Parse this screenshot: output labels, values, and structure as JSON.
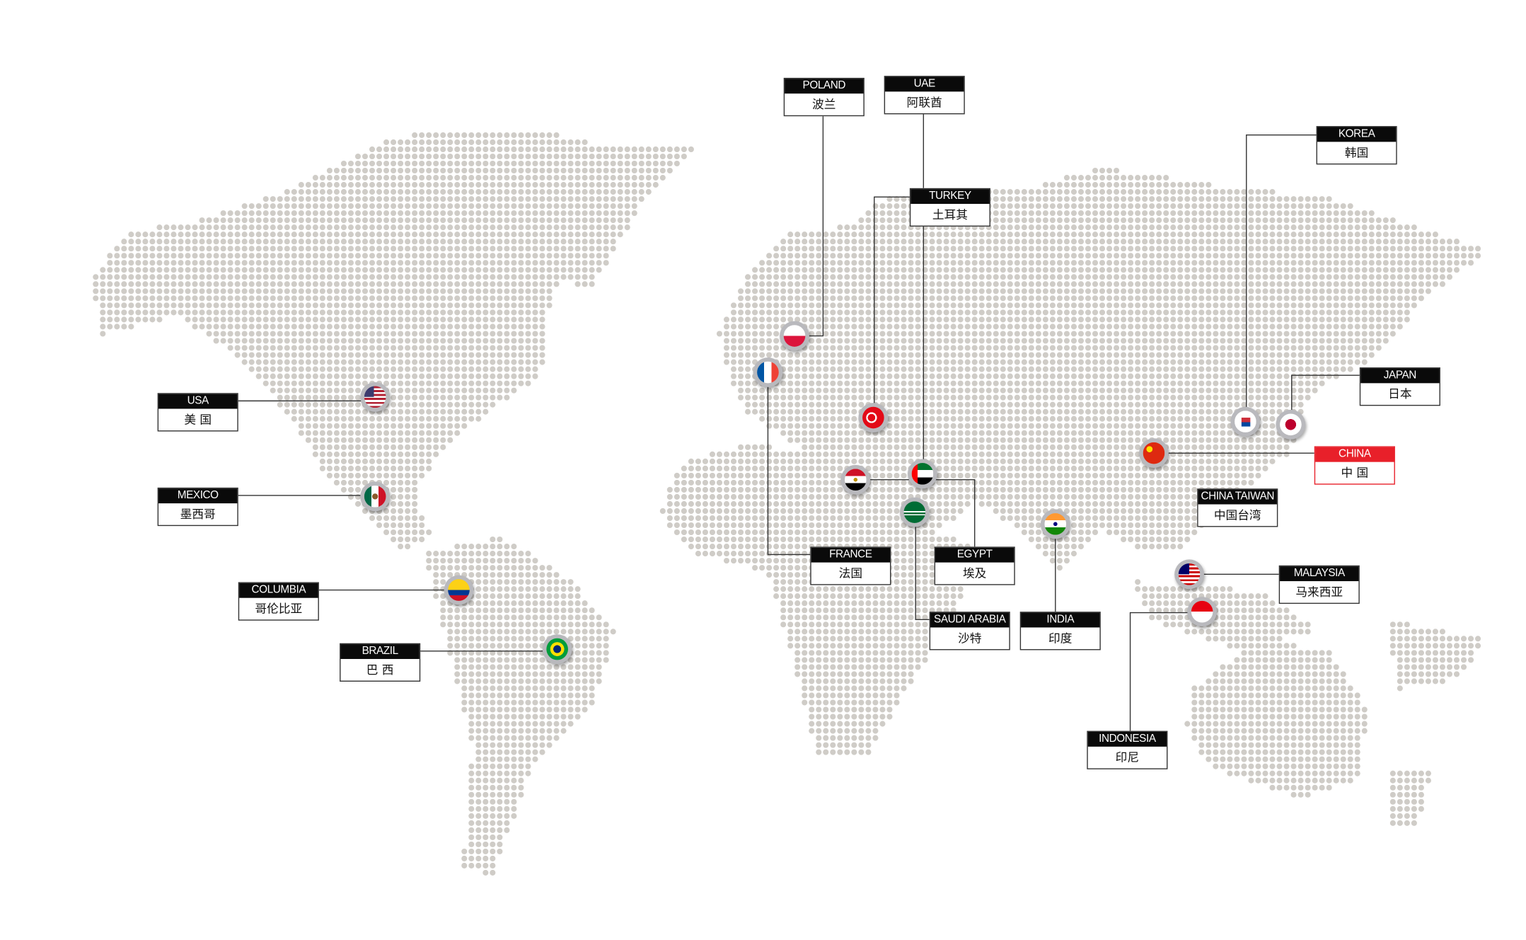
{
  "map": {
    "dot_color": "#cfccc7",
    "line_color": "#333333",
    "highlight_color": "#e8202a"
  },
  "locations": [
    {
      "id": "poland",
      "en": "POLAND",
      "cn": "波兰",
      "flag": "poland-flag-icon"
    },
    {
      "id": "uae",
      "en": "UAE",
      "cn": "阿联酋",
      "flag": "uae-flag-icon"
    },
    {
      "id": "turkey",
      "en": "TURKEY",
      "cn": "土耳其",
      "flag": "turkey-flag-icon"
    },
    {
      "id": "korea",
      "en": "KOREA",
      "cn": "韩国",
      "flag": "korea-flag-icon"
    },
    {
      "id": "japan",
      "en": "JAPAN",
      "cn": "日本",
      "flag": "japan-flag-icon"
    },
    {
      "id": "china",
      "en": "CHINA",
      "cn": "中 国",
      "flag": "china-flag-icon",
      "highlight": true
    },
    {
      "id": "china-taiwan",
      "en": "CHINA TAIWAN",
      "cn": "中国台湾"
    },
    {
      "id": "malaysia",
      "en": "MALAYSIA",
      "cn": "马来西亚",
      "flag": "malaysia-flag-icon"
    },
    {
      "id": "indonesia",
      "en": "INDONESIA",
      "cn": "印尼",
      "flag": "indonesia-flag-icon"
    },
    {
      "id": "india",
      "en": "INDIA",
      "cn": "印度",
      "flag": "india-flag-icon"
    },
    {
      "id": "saudi-arabia",
      "en": "SAUDI ARABIA",
      "cn": "沙特",
      "flag": "saudi-flag-icon"
    },
    {
      "id": "egypt",
      "en": "EGYPT",
      "cn": "埃及",
      "flag": "egypt-flag-icon"
    },
    {
      "id": "france",
      "en": "FRANCE",
      "cn": "法国",
      "flag": "france-flag-icon"
    },
    {
      "id": "usa",
      "en": "USA",
      "cn": "美 国",
      "flag": "usa-flag-icon"
    },
    {
      "id": "mexico",
      "en": "MEXICO",
      "cn": "墨西哥",
      "flag": "mexico-flag-icon"
    },
    {
      "id": "columbia",
      "en": "COLUMBIA",
      "cn": "哥伦比亚",
      "flag": "colombia-flag-icon"
    },
    {
      "id": "brazil",
      "en": "BRAZIL",
      "cn": "巴 西",
      "flag": "brazil-flag-icon"
    }
  ]
}
